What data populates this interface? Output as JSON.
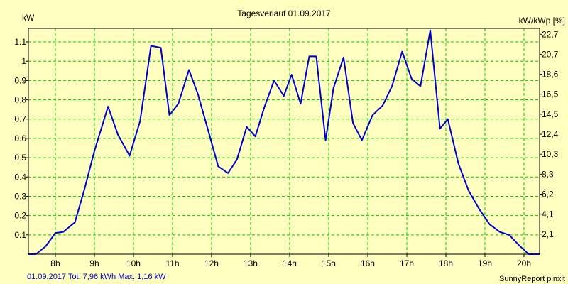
{
  "chart_data": {
    "type": "line",
    "title": "Tagesverlauf 01.09.2017",
    "ylabel_left": "kW",
    "ylabel_right": "kW/kWp [%]",
    "grid": true,
    "ylim": [
      0,
      1.17
    ],
    "xlim": [
      7.31,
      20.4
    ],
    "x_ticks": [
      8,
      9,
      10,
      11,
      12,
      13,
      14,
      15,
      16,
      17,
      18,
      19,
      20
    ],
    "x_tick_labels": [
      "8h",
      "9h",
      "10h",
      "11h",
      "12h",
      "13h",
      "14h",
      "15h",
      "16h",
      "17h",
      "18h",
      "19h",
      "20h"
    ],
    "y_left_ticks": [
      0.1,
      0.2,
      0.3,
      0.4,
      0.5,
      0.6,
      0.7,
      0.8,
      0.9,
      1,
      1.1
    ],
    "y_left_tick_labels": [
      "0.1",
      "0.2",
      "0.3",
      "0.4",
      "0.5",
      "0.6",
      "0.7",
      "0.8",
      "0.9",
      "1",
      "1.1"
    ],
    "y_right_ticks": [
      0.1036,
      0.2072,
      0.3108,
      0.4144,
      0.518,
      0.6216,
      0.7252,
      0.8288,
      0.9324,
      1.036,
      1.1396
    ],
    "y_right_tick_labels": [
      "2,1",
      "4,1",
      "6,2",
      "8,3",
      "10,3",
      "12,4",
      "14,5",
      "16,5",
      "18,6",
      "20,7",
      "22,7"
    ],
    "colors": {
      "line": "#0000cc",
      "grid": "#00cc00",
      "background": "#ffffc0"
    },
    "series": [
      {
        "x": [
          7.31,
          7.5,
          7.75,
          8.0,
          8.2,
          8.5,
          8.75,
          9.0,
          9.35,
          9.6,
          9.9,
          10.17,
          10.45,
          10.7,
          10.92,
          11.15,
          11.42,
          11.65,
          11.9,
          12.17,
          12.42,
          12.65,
          12.9,
          13.12,
          13.35,
          13.6,
          13.85,
          14.05,
          14.28,
          14.5,
          14.68,
          14.92,
          15.12,
          15.38,
          15.62,
          15.85,
          16.12,
          16.38,
          16.62,
          16.88,
          17.12,
          17.35,
          17.6,
          17.85,
          18.05,
          18.32,
          18.58,
          18.85,
          19.12,
          19.38,
          19.62,
          19.88,
          20.12,
          20.4
        ],
        "y": [
          0,
          0,
          0.04,
          0.11,
          0.115,
          0.165,
          0.34,
          0.535,
          0.765,
          0.62,
          0.51,
          0.69,
          1.08,
          1.07,
          0.72,
          0.78,
          0.955,
          0.83,
          0.65,
          0.455,
          0.42,
          0.49,
          0.66,
          0.61,
          0.76,
          0.9,
          0.82,
          0.93,
          0.78,
          1.025,
          1.025,
          0.59,
          0.86,
          1.02,
          0.68,
          0.59,
          0.72,
          0.77,
          0.87,
          1.05,
          0.91,
          0.87,
          1.16,
          0.65,
          0.7,
          0.47,
          0.33,
          0.235,
          0.155,
          0.115,
          0.1,
          0.045,
          0.0,
          0.0
        ]
      }
    ],
    "footer_left": "01.09.2017 Tot: 7,96 kWh Max: 1,16 kW",
    "footer_right": "SunnyReport pinxit"
  }
}
